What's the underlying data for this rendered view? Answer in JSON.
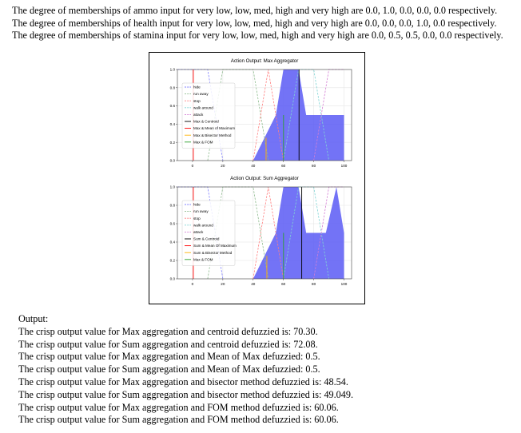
{
  "intro_lines": [
    "The degree of memberships of ammo input for very low, low, med, high and very high are 0.0, 1.0, 0.0, 0.0, 0.0 respectively.",
    "The degree of memberships of health input for very low, low, med, high and very high are 0.0, 0.0, 0.0, 1.0, 0.0 respectively.",
    "The degree of memberships of stamina input for very low, low, med, high and very high are 0.0, 0.5, 0.5, 0.0, 0.0 respectively."
  ],
  "output_heading": "Output:",
  "output_lines": [
    "The crisp output value for Max aggregation and centroid defuzzied is: 70.30.",
    "The crisp output value for Sum aggregation and centroid defuzzied is: 72.08.",
    "The crisp output value for Max aggregation and Mean of Max defuzzied:  0.5.",
    "The crisp output value for Sum aggregation and Mean of Max defuzzied:  0.5.",
    "The crisp output value for Max aggregation and bisector method defuzzied is: 48.54.",
    "The crisp output value for Sum aggregation and bisector method defuzzied is: 49.049.",
    "The crisp output value for Max aggregation and FOM method defuzzied is: 60.06.",
    "The crisp output value for Sum aggregation and FOM method defuzzied is: 60.06."
  ],
  "chart_data": [
    {
      "type": "line",
      "title": "Action Output: Max Aggregator",
      "xlim": [
        -10,
        105
      ],
      "ylim": [
        0,
        1.0
      ],
      "xticks": [
        0,
        20,
        40,
        60,
        80,
        100
      ],
      "yticks": [
        0.0,
        0.2,
        0.4,
        0.6,
        0.8,
        1.0
      ],
      "grid": true,
      "legend_position": "center-left",
      "membership_functions": [
        {
          "name": "hide",
          "color": "#7f7fff",
          "x": [
            -10,
            10,
            20
          ],
          "y": [
            1,
            1,
            0
          ]
        },
        {
          "name": "run away",
          "color": "#8fbc8f",
          "x": [
            10,
            20,
            40,
            50
          ],
          "y": [
            0,
            1,
            1,
            0
          ]
        },
        {
          "name": "stop",
          "color": "#ff7f7f",
          "x": [
            40,
            50,
            60
          ],
          "y": [
            0,
            1,
            0
          ]
        },
        {
          "name": "walk around",
          "color": "#7fd4d4",
          "x": [
            60,
            70,
            80,
            90
          ],
          "y": [
            0,
            1,
            1,
            0
          ]
        },
        {
          "name": "attack",
          "color": "#d47fd4",
          "x": [
            80,
            90,
            100
          ],
          "y": [
            0,
            1,
            1
          ]
        }
      ],
      "aggregate": {
        "color": "#5b5bf5",
        "x": [
          40,
          55,
          60,
          62,
          70,
          75,
          75,
          100
        ],
        "y": [
          0,
          0.5,
          1,
          1,
          1,
          0.5,
          0.5,
          0.5
        ]
      },
      "defuzz_lines": [
        {
          "name": "Max & Centroid",
          "color": "#000000",
          "x": 70.3
        },
        {
          "name": "Max & Mean of Maximum",
          "color": "#ff0000",
          "x": 0.5
        },
        {
          "name": "Max & Bisector Method",
          "color": "#ffb000",
          "x": 48.54
        },
        {
          "name": "Max & FOM",
          "color": "#2ca02c",
          "x": 60.06
        }
      ]
    },
    {
      "type": "line",
      "title": "Action Output: Sum Aggregator",
      "xlim": [
        -10,
        105
      ],
      "ylim": [
        0,
        1.0
      ],
      "xticks": [
        0,
        20,
        40,
        60,
        80,
        100
      ],
      "yticks": [
        0.0,
        0.2,
        0.4,
        0.6,
        0.8,
        1.0
      ],
      "grid": true,
      "legend_position": "center-left",
      "membership_functions": [
        {
          "name": "hide",
          "color": "#7f7fff",
          "x": [
            -10,
            10,
            20
          ],
          "y": [
            1,
            1,
            0
          ]
        },
        {
          "name": "run away",
          "color": "#8fbc8f",
          "x": [
            10,
            20,
            40,
            50
          ],
          "y": [
            0,
            1,
            1,
            0
          ]
        },
        {
          "name": "stop",
          "color": "#ff7f7f",
          "x": [
            40,
            50,
            60
          ],
          "y": [
            0,
            1,
            0
          ]
        },
        {
          "name": "walk around",
          "color": "#7fd4d4",
          "x": [
            60,
            70,
            80,
            90
          ],
          "y": [
            0,
            1,
            1,
            0
          ]
        },
        {
          "name": "attack",
          "color": "#d47fd4",
          "x": [
            80,
            90,
            100
          ],
          "y": [
            0,
            1,
            1
          ]
        }
      ],
      "aggregate": {
        "color": "#5b5bf5",
        "x": [
          40,
          55,
          60,
          62,
          70,
          75,
          80,
          82,
          88,
          95,
          100
        ],
        "y": [
          0,
          0.5,
          1,
          1,
          1,
          0.5,
          0.5,
          0.5,
          0.5,
          1,
          0.5
        ]
      },
      "defuzz_lines": [
        {
          "name": "Sum & Centroid",
          "color": "#000000",
          "x": 72.08
        },
        {
          "name": "Sum & Mean Of Maximum",
          "color": "#ff0000",
          "x": 0.5
        },
        {
          "name": "Sum & Bisector Method",
          "color": "#ffb000",
          "x": 49.049
        },
        {
          "name": "Max & FOM",
          "color": "#2ca02c",
          "x": 60.06
        }
      ]
    }
  ]
}
